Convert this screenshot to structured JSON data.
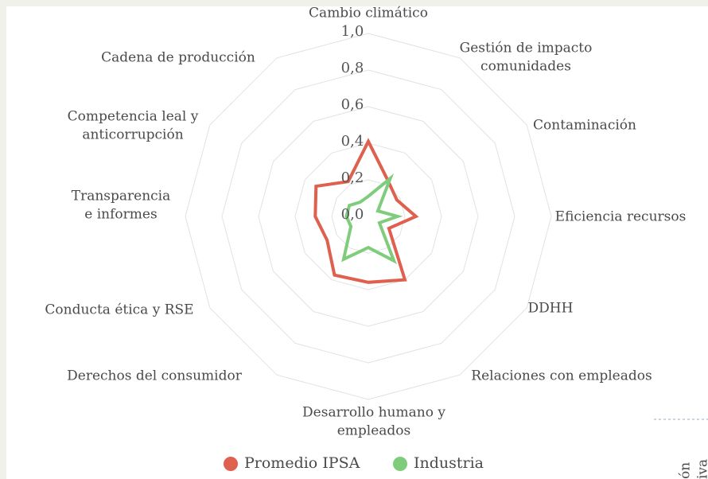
{
  "chart_data": {
    "type": "radar",
    "categories": [
      [
        "Cambio climático"
      ],
      [
        "Gestión de impacto",
        "comunidades"
      ],
      [
        "Contaminación"
      ],
      [
        "Eficiencia recursos"
      ],
      [
        "DDHH"
      ],
      [
        "Relaciones con empleados"
      ],
      [
        "Desarrollo humano y",
        "empleados"
      ],
      [
        "Derechos del consumidor"
      ],
      [
        "Conducta ética y RSE"
      ],
      [
        "Transparencia",
        "e informes"
      ],
      [
        "Competencia leal y",
        "anticorrupción"
      ],
      [
        "Cadena de producción"
      ]
    ],
    "series": [
      {
        "name": "Promedio IPSA",
        "color": "#e0604f",
        "values": [
          0.41,
          0.22,
          0.18,
          0.26,
          0.13,
          0.4,
          0.36,
          0.37,
          0.26,
          0.29,
          0.33,
          0.22
        ]
      },
      {
        "name": "Industria",
        "color": "#7fcd7c",
        "values": [
          0.11,
          0.24,
          0.06,
          0.16,
          0.07,
          0.28,
          0.17,
          0.27,
          0.11,
          0.12,
          0.12,
          0.09
        ]
      }
    ],
    "ylim": [
      0,
      1
    ],
    "yticks": [
      {
        "value": 0,
        "label": "0,0"
      },
      {
        "value": 0.2,
        "label": "0,2"
      },
      {
        "value": 0.4,
        "label": "0,4"
      },
      {
        "value": 0.6,
        "label": "0,6"
      },
      {
        "value": 0.8,
        "label": "0,8"
      },
      {
        "value": 1,
        "label": "1,0"
      }
    ],
    "grid": true,
    "legend": "bottom"
  },
  "side_fragments": [
    "ón",
    "iva"
  ]
}
